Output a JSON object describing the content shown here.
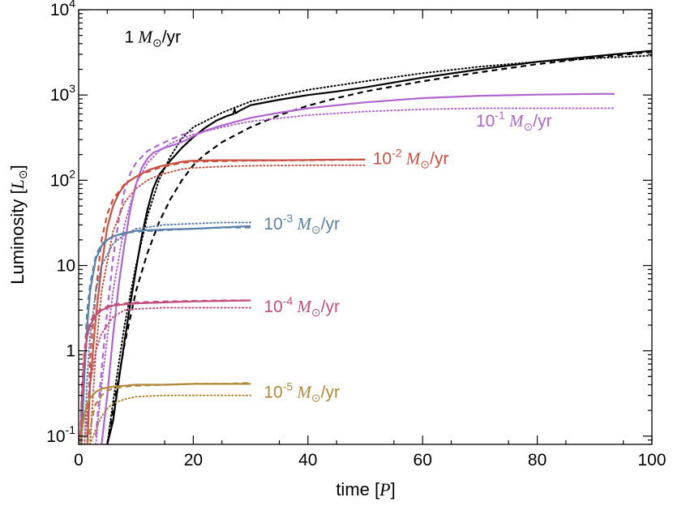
{
  "chart_data": {
    "type": "line",
    "xlabel": {
      "prefix": "time [",
      "var": "P",
      "suffix": "]"
    },
    "ylabel": {
      "prefix": "Luminosity [",
      "var": "L",
      "sub": "⊙",
      "suffix": "]"
    },
    "xlim": [
      0,
      100
    ],
    "ylim": [
      0.08,
      10000
    ],
    "yscale": "log",
    "grid": false,
    "x_ticks": [
      0,
      20,
      40,
      60,
      80,
      100
    ],
    "x_tick_labels": [
      "0",
      "20",
      "40",
      "60",
      "80",
      "100"
    ],
    "y_ticks": [
      {
        "value": 0.1,
        "base": "10",
        "exp": "-1"
      },
      {
        "value": 1,
        "base": "1",
        "exp": ""
      },
      {
        "value": 10,
        "base": "10",
        "exp": ""
      },
      {
        "value": 100,
        "base": "10",
        "exp": "2"
      },
      {
        "value": 1000,
        "base": "10",
        "exp": "3"
      },
      {
        "value": 10000,
        "base": "10",
        "exp": "4"
      }
    ],
    "line_styles": [
      "solid",
      "dashed",
      "dotted"
    ],
    "series": [
      {
        "id": "rate-1",
        "color": "#000000",
        "label": {
          "coef": "1",
          "exp": "",
          "unit": "M",
          "sun": "⊙",
          "per": "/yr"
        },
        "label_at": [
          8.0,
          4800
        ],
        "solid": {
          "x": [
            5,
            6,
            7,
            8,
            9,
            10,
            11,
            12,
            13,
            14,
            16,
            18,
            20,
            22,
            24,
            26,
            27,
            27.2,
            27.4,
            28,
            30,
            35,
            40,
            45,
            50,
            60,
            70,
            80,
            90,
            100
          ],
          "y": [
            0.08,
            0.15,
            0.45,
            1.3,
            3.5,
            9,
            22,
            45,
            80,
            115,
            170,
            240,
            320,
            410,
            500,
            570,
            600,
            680,
            610,
            650,
            760,
            880,
            1000,
            1100,
            1230,
            1600,
            2000,
            2450,
            2850,
            3300
          ]
        },
        "dashed": {
          "x": [
            5,
            6,
            8,
            10,
            12,
            14,
            16,
            18,
            20,
            22,
            25,
            30,
            35,
            40,
            45,
            50,
            60,
            70,
            80,
            90,
            100
          ],
          "y": [
            0.08,
            0.2,
            1.2,
            5,
            14,
            32,
            60,
            100,
            150,
            200,
            280,
            420,
            580,
            750,
            920,
            1100,
            1450,
            1850,
            2300,
            2750,
            3200
          ]
        },
        "dotted": {
          "x": [
            5,
            6,
            8,
            10,
            12,
            14,
            16,
            18,
            20,
            25,
            30,
            40,
            50,
            60,
            70,
            80,
            90,
            100
          ],
          "y": [
            0.08,
            0.25,
            2,
            10,
            38,
            100,
            190,
            310,
            420,
            620,
            840,
            1150,
            1450,
            1800,
            2150,
            2450,
            2700,
            2900
          ]
        }
      },
      {
        "id": "rate-1e-1",
        "color": "#b065cf",
        "label": {
          "coef": "10",
          "exp": "-1",
          "unit": "M",
          "sun": "⊙",
          "per": "/yr"
        },
        "label_at": [
          69.3,
          500
        ],
        "solid": {
          "x": [
            4,
            5,
            6,
            7,
            8,
            9,
            10,
            11,
            12,
            13,
            15,
            17,
            19,
            20,
            22,
            25,
            30,
            35,
            40,
            50,
            60,
            70,
            80,
            90,
            93.5
          ],
          "y": [
            0.08,
            0.3,
            1.5,
            6,
            18,
            45,
            90,
            140,
            180,
            210,
            240,
            265,
            300,
            330,
            380,
            440,
            540,
            620,
            700,
            820,
            920,
            980,
            1010,
            1030,
            1030
          ]
        },
        "dashed": {
          "x": [
            3,
            4,
            5,
            6,
            7,
            8,
            9,
            10,
            12,
            14,
            16,
            18,
            20
          ],
          "y": [
            0.1,
            0.6,
            3,
            12,
            35,
            75,
            120,
            160,
            220,
            260,
            300,
            340,
            380
          ]
        },
        "dotted": {
          "x": [
            3,
            4,
            6,
            8,
            10,
            12,
            14,
            16,
            18,
            20,
            25,
            30,
            40,
            50,
            60,
            70,
            80,
            93.5
          ],
          "y": [
            0.08,
            0.4,
            5,
            30,
            90,
            160,
            220,
            270,
            310,
            345,
            420,
            490,
            580,
            640,
            680,
            700,
            700,
            700
          ]
        }
      },
      {
        "id": "rate-1e-2",
        "color": "#c85040",
        "label": {
          "coef": "10",
          "exp": "-2",
          "unit": "M",
          "sun": "⊙",
          "per": "/yr"
        },
        "label_at": [
          51.3,
          180
        ],
        "solid": {
          "x": [
            1.5,
            2,
            3,
            4,
            5,
            6,
            7,
            8,
            9,
            10,
            12,
            14,
            16,
            18,
            20,
            25,
            30,
            35,
            40,
            45,
            50
          ],
          "y": [
            0.08,
            0.4,
            2.5,
            10,
            28,
            50,
            70,
            88,
            100,
            110,
            130,
            145,
            155,
            165,
            170,
            172,
            172,
            172,
            173,
            175,
            175
          ]
        },
        "dashed": {
          "x": [
            1.5,
            2,
            3,
            4,
            5,
            6,
            8,
            10,
            12,
            14,
            16,
            18,
            20,
            30,
            40,
            50
          ],
          "y": [
            0.1,
            0.8,
            5,
            20,
            40,
            60,
            90,
            110,
            125,
            140,
            150,
            160,
            165,
            170,
            172,
            175
          ]
        },
        "dotted": {
          "x": [
            2,
            3,
            4,
            6,
            8,
            10,
            12,
            14,
            16,
            18,
            20,
            25,
            30,
            40,
            50
          ],
          "y": [
            0.08,
            1,
            5,
            25,
            55,
            80,
            100,
            115,
            125,
            135,
            140,
            145,
            148,
            150,
            150
          ]
        }
      },
      {
        "id": "rate-1e-3",
        "color": "#5a7fa8",
        "label": {
          "coef": "10",
          "exp": "-3",
          "unit": "M",
          "sun": "⊙",
          "per": "/yr"
        },
        "label_at": [
          32.3,
          31
        ],
        "solid": {
          "x": [
            0.5,
            1,
            1.5,
            2,
            3,
            4,
            5,
            6,
            7,
            8,
            10,
            12,
            15,
            20,
            25,
            30
          ],
          "y": [
            0.08,
            0.5,
            2,
            5,
            12,
            17,
            20,
            22,
            23,
            24,
            25.5,
            26,
            26.5,
            27,
            28,
            29
          ]
        },
        "dashed": {
          "x": [
            0.5,
            1,
            1.5,
            2,
            3,
            4,
            6,
            8,
            10,
            15,
            20,
            25,
            30
          ],
          "y": [
            0.1,
            0.8,
            3,
            6,
            13,
            18,
            22,
            24,
            25,
            26,
            27,
            28,
            28
          ]
        },
        "dotted": {
          "x": [
            1,
            1.5,
            2,
            3,
            4,
            6,
            8,
            10,
            15,
            20,
            25,
            30
          ],
          "y": [
            0.08,
            0.5,
            1.5,
            5,
            10,
            18,
            23,
            27,
            30,
            31,
            32,
            32
          ]
        }
      },
      {
        "id": "rate-1e-4",
        "color": "#c0507a",
        "label": {
          "coef": "10",
          "exp": "-4",
          "unit": "M",
          "sun": "⊙",
          "per": "/yr"
        },
        "label_at": [
          32.3,
          3.3
        ],
        "solid": {
          "x": [
            0.3,
            0.6,
            1,
            1.5,
            2,
            3,
            4,
            5,
            6,
            8,
            10,
            15,
            20,
            25,
            30
          ],
          "y": [
            0.08,
            0.3,
            0.8,
            1.5,
            2,
            2.6,
            3,
            3.2,
            3.4,
            3.5,
            3.6,
            3.7,
            3.8,
            3.85,
            3.9
          ]
        },
        "dashed": {
          "x": [
            0.3,
            0.6,
            1,
            1.5,
            2,
            3,
            4,
            5,
            6,
            8,
            10,
            15,
            20,
            25,
            30
          ],
          "y": [
            0.1,
            0.4,
            1,
            1.6,
            2.2,
            2.8,
            3.1,
            3.3,
            3.5,
            3.6,
            3.7,
            3.8,
            3.85,
            3.9,
            3.9
          ]
        },
        "dotted": {
          "x": [
            1,
            1.5,
            2,
            3,
            4,
            6,
            8,
            10,
            15,
            20,
            25,
            30
          ],
          "y": [
            0.08,
            0.2,
            0.4,
            1,
            1.6,
            2.5,
            3,
            3.1,
            3.2,
            3.2,
            3.2,
            3.2
          ]
        }
      },
      {
        "id": "rate-1e-5",
        "color": "#b08838",
        "label": {
          "coef": "10",
          "exp": "-5",
          "unit": "M",
          "sun": "⊙",
          "per": "/yr"
        },
        "label_at": [
          32.3,
          0.33
        ],
        "solid": {
          "x": [
            0.3,
            0.6,
            1,
            1.5,
            2,
            3,
            4,
            5,
            6,
            8,
            10,
            15,
            20,
            25,
            30
          ],
          "y": [
            0.08,
            0.12,
            0.18,
            0.24,
            0.28,
            0.33,
            0.36,
            0.37,
            0.38,
            0.39,
            0.4,
            0.4,
            0.41,
            0.41,
            0.41
          ]
        },
        "dashed": {
          "x": [
            1.5,
            2,
            2.5,
            3,
            4,
            5,
            6,
            8,
            10,
            15,
            20,
            25,
            30
          ],
          "y": [
            0.08,
            0.12,
            0.18,
            0.24,
            0.3,
            0.34,
            0.36,
            0.38,
            0.39,
            0.4,
            0.41,
            0.41,
            0.42
          ]
        },
        "dotted": {
          "x": [
            2,
            3,
            4,
            5,
            6,
            8,
            10,
            15,
            20,
            25,
            30
          ],
          "y": [
            0.08,
            0.12,
            0.17,
            0.21,
            0.24,
            0.27,
            0.29,
            0.3,
            0.3,
            0.3,
            0.3
          ]
        }
      }
    ]
  }
}
